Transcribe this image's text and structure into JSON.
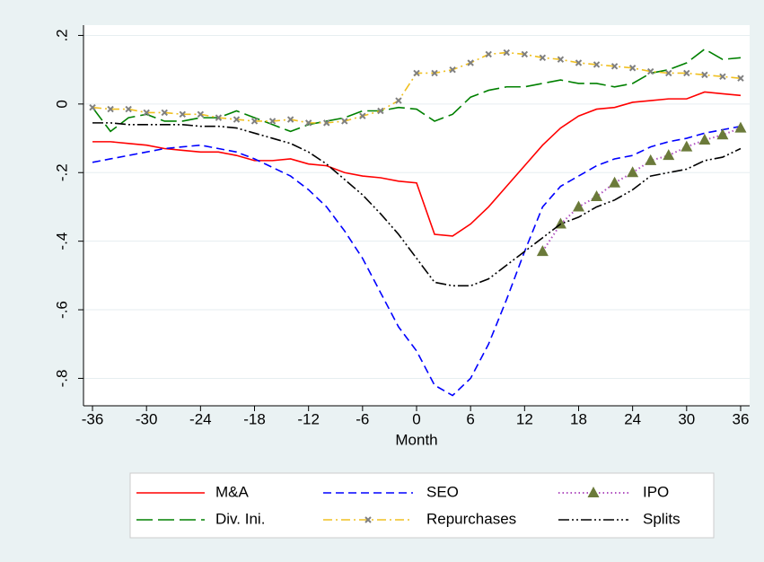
{
  "chart_data": {
    "type": "line",
    "xlabel": "Month",
    "x": [
      -36,
      -34,
      -32,
      -30,
      -28,
      -26,
      -24,
      -22,
      -20,
      -18,
      -16,
      -14,
      -12,
      -10,
      -8,
      -6,
      -4,
      -2,
      0,
      2,
      4,
      6,
      8,
      10,
      12,
      14,
      16,
      18,
      20,
      22,
      24,
      26,
      28,
      30,
      32,
      34,
      36
    ],
    "xlim": [
      -37,
      37
    ],
    "xticks": [
      -36,
      -30,
      -24,
      -18,
      -12,
      -6,
      0,
      6,
      12,
      18,
      24,
      30,
      36
    ],
    "ylim": [
      -0.88,
      0.23
    ],
    "yticks": [
      {
        "value": 0.2,
        "label": ".2"
      },
      0,
      {
        "value": -0.2,
        "label": "-.2"
      },
      {
        "value": -0.4,
        "label": "-.4"
      },
      {
        "value": -0.6,
        "label": "-.6"
      },
      {
        "value": -0.8,
        "label": "-.8"
      }
    ],
    "grid": true,
    "legend_position": "bottom",
    "series": [
      {
        "name": "M&A",
        "color": "#ff0000",
        "dash": "solid",
        "values": [
          -0.11,
          -0.11,
          -0.115,
          -0.12,
          -0.13,
          -0.135,
          -0.14,
          -0.14,
          -0.15,
          -0.165,
          -0.165,
          -0.16,
          -0.175,
          -0.18,
          -0.2,
          -0.21,
          -0.215,
          -0.225,
          -0.23,
          -0.38,
          -0.385,
          -0.35,
          -0.3,
          -0.24,
          -0.18,
          -0.12,
          -0.07,
          -0.035,
          -0.015,
          -0.01,
          0.005,
          0.01,
          0.015,
          0.015,
          0.035,
          0.03,
          0.025
        ]
      },
      {
        "name": "SEO",
        "color": "#0000ff",
        "dash": "dashed",
        "values": [
          -0.17,
          -0.16,
          -0.15,
          -0.14,
          -0.13,
          -0.125,
          -0.12,
          -0.13,
          -0.14,
          -0.16,
          -0.185,
          -0.21,
          -0.25,
          -0.3,
          -0.37,
          -0.45,
          -0.55,
          -0.65,
          -0.72,
          -0.82,
          -0.85,
          -0.8,
          -0.7,
          -0.57,
          -0.43,
          -0.3,
          -0.24,
          -0.21,
          -0.18,
          -0.16,
          -0.15,
          -0.125,
          -0.11,
          -0.1,
          -0.085,
          -0.075,
          -0.065
        ]
      },
      {
        "name": "IPO",
        "color": "#b050c0",
        "dash": "dotted",
        "marker": "triangle",
        "marker_color": "#6b7a3a",
        "values": [
          null,
          null,
          null,
          null,
          null,
          null,
          null,
          null,
          null,
          null,
          null,
          null,
          null,
          null,
          null,
          null,
          null,
          null,
          null,
          null,
          null,
          null,
          null,
          null,
          null,
          -0.43,
          -0.35,
          -0.3,
          -0.27,
          -0.23,
          -0.2,
          -0.165,
          -0.15,
          -0.125,
          -0.105,
          -0.09,
          -0.07
        ]
      },
      {
        "name": "Div. Ini.",
        "color": "#008000",
        "dash": "longdash",
        "values": [
          -0.01,
          -0.08,
          -0.04,
          -0.03,
          -0.05,
          -0.05,
          -0.04,
          -0.04,
          -0.02,
          -0.04,
          -0.06,
          -0.08,
          -0.06,
          -0.05,
          -0.04,
          -0.02,
          -0.02,
          -0.01,
          -0.015,
          -0.05,
          -0.03,
          0.02,
          0.04,
          0.05,
          0.05,
          0.06,
          0.07,
          0.06,
          0.06,
          0.05,
          0.06,
          0.09,
          0.1,
          0.12,
          0.16,
          0.13,
          0.135
        ]
      },
      {
        "name": "Repurchases",
        "color": "#f0c020",
        "dash": "dashdot",
        "marker": "x",
        "marker_color": "#808080",
        "values": [
          -0.01,
          -0.015,
          -0.015,
          -0.025,
          -0.025,
          -0.03,
          -0.03,
          -0.04,
          -0.045,
          -0.05,
          -0.05,
          -0.045,
          -0.055,
          -0.055,
          -0.05,
          -0.035,
          -0.02,
          0.01,
          0.09,
          0.09,
          0.1,
          0.12,
          0.145,
          0.15,
          0.145,
          0.135,
          0.13,
          0.12,
          0.115,
          0.11,
          0.105,
          0.095,
          0.09,
          0.09,
          0.085,
          0.08,
          0.075
        ]
      },
      {
        "name": "Splits",
        "color": "#000000",
        "dash": "dashdotdot",
        "values": [
          -0.055,
          -0.055,
          -0.06,
          -0.06,
          -0.06,
          -0.06,
          -0.065,
          -0.065,
          -0.07,
          -0.085,
          -0.1,
          -0.115,
          -0.14,
          -0.175,
          -0.22,
          -0.265,
          -0.32,
          -0.38,
          -0.45,
          -0.52,
          -0.53,
          -0.53,
          -0.51,
          -0.47,
          -0.43,
          -0.39,
          -0.35,
          -0.33,
          -0.3,
          -0.28,
          -0.25,
          -0.21,
          -0.2,
          -0.19,
          -0.165,
          -0.155,
          -0.13
        ]
      }
    ]
  }
}
